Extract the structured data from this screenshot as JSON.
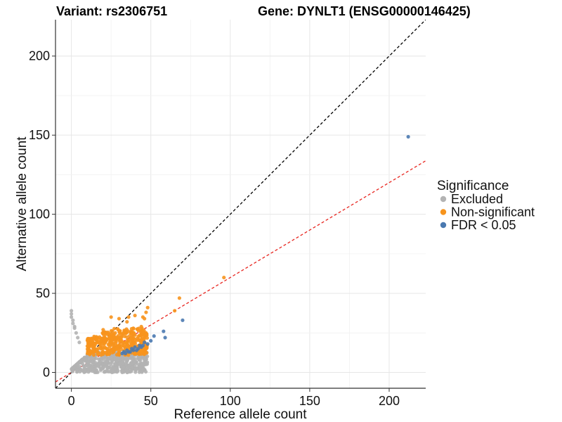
{
  "chart_data": {
    "type": "scatter",
    "title_left": "Variant: rs2306751",
    "title_right": "Gene: DYNLT1 (ENSG00000146425)",
    "xlabel": "Reference allele count",
    "ylabel": "Alternative allele count",
    "xlim": [
      -10,
      223
    ],
    "ylim": [
      -10,
      223
    ],
    "xticks": [
      0,
      50,
      100,
      150,
      200
    ],
    "yticks": [
      0,
      50,
      100,
      150,
      200
    ],
    "grid": true,
    "reference_lines": [
      {
        "name": "identity",
        "slope": 1.0,
        "intercept": 0,
        "color": "#000000",
        "style": "dashed"
      },
      {
        "name": "fitted",
        "slope": 0.6,
        "intercept": 0,
        "color": "#e8251f",
        "style": "dashed"
      }
    ],
    "legend": {
      "title": "Significance",
      "position": "right",
      "entries": [
        {
          "label": "Excluded",
          "color": "#b3b3b3"
        },
        {
          "label": "Non-significant",
          "color": "#f7941d"
        },
        {
          "label": "FDR < 0.05",
          "color": "#4a79b0"
        }
      ]
    },
    "series": [
      {
        "name": "Excluded",
        "color": "#b3b3b3",
        "cluster": {
          "n": 500,
          "x_range": [
            0,
            48
          ],
          "y_range": [
            0,
            13
          ]
        },
        "x": [
          0,
          0,
          0,
          1,
          1,
          2,
          2,
          3,
          4,
          5,
          45
        ],
        "y": [
          39,
          37,
          35,
          33,
          31,
          29,
          28,
          25,
          22,
          19,
          2
        ]
      },
      {
        "name": "Non-significant",
        "color": "#f7941d",
        "cluster": {
          "n": 420,
          "x_range": [
            10,
            48
          ],
          "y_range": [
            11,
            28
          ]
        },
        "x": [
          96,
          68,
          65,
          48,
          47,
          46,
          45,
          44,
          40,
          36,
          35,
          30,
          25,
          20
        ],
        "y": [
          60,
          47,
          39,
          41,
          38,
          34,
          35,
          29,
          36,
          35,
          32,
          34,
          35,
          27
        ]
      },
      {
        "name": "FDR < 0.05",
        "color": "#4a79b0",
        "x": [
          212,
          70,
          58,
          59,
          52,
          50,
          48,
          46,
          45,
          44,
          43,
          42,
          41,
          40,
          39,
          38,
          37,
          36,
          35,
          34,
          33,
          32
        ],
        "y": [
          149,
          33,
          26,
          22,
          23,
          20,
          18,
          19,
          17,
          16,
          17,
          15,
          14,
          16,
          14,
          15,
          13,
          13,
          14,
          12,
          13,
          12
        ]
      }
    ]
  }
}
